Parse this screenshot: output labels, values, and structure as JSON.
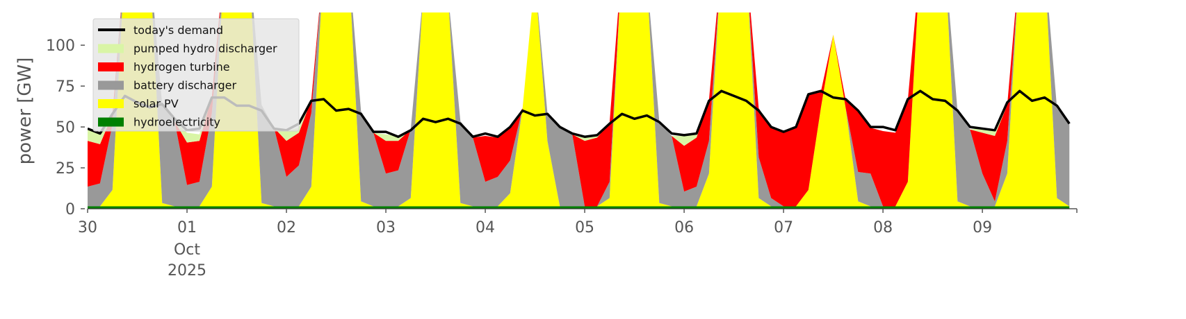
{
  "chart_data": {
    "type": "area",
    "title": "",
    "ylabel": "power [GW]",
    "xlabel": "",
    "ylim": [
      0,
      120
    ],
    "yticks": [
      "0",
      "25",
      "50",
      "75",
      "100"
    ],
    "ytick_values": [
      0,
      25,
      50,
      75,
      100
    ],
    "xlim_days": [
      0,
      9.95
    ],
    "x_start": "2025-09-30 00:00",
    "x_step_hours": 3,
    "xtick_labels": [
      "30",
      "01",
      "02",
      "03",
      "04",
      "05",
      "06",
      "07",
      "08",
      "09"
    ],
    "xtick_sublabel_month": "Oct",
    "xtick_sublabel_year": "2025",
    "grid": false,
    "legend_position": "top-left",
    "legend": [
      "today's demand",
      "pumped hydro discharger",
      "hydrogen turbine",
      "battery discharger",
      "solar PV",
      "hydroelectricity"
    ],
    "stack_series": [
      {
        "name": "hydroelectricity",
        "color": "#008000",
        "values": [
          1.5,
          1.5,
          1.5,
          1.5,
          1.5,
          1.5,
          1.5,
          1.5,
          1.5,
          1.5,
          1.5,
          1.5,
          1.5,
          1.5,
          1.5,
          1.5,
          1.5,
          1.5,
          1.5,
          1.5,
          1.5,
          1.5,
          1.5,
          1.5,
          1.5,
          1.5,
          1.5,
          1.5,
          1.5,
          1.5,
          1.5,
          1.5,
          1.5,
          1.5,
          1.5,
          1.5,
          1.5,
          1.5,
          1.5,
          1.5,
          1.5,
          1.5,
          1.5,
          1.5,
          1.5,
          1.5,
          1.5,
          1.5,
          1.5,
          1.5,
          1.5,
          1.5,
          1.5,
          1.5,
          1.5,
          1.5,
          1.5,
          1.5,
          1.5,
          1.5,
          1.5,
          1.5,
          1.5,
          1.5,
          1.5,
          1.5,
          1.5,
          1.5,
          1.5,
          1.5,
          1.5,
          1.5,
          1.5,
          1.5,
          1.5,
          1.5,
          1.5,
          1.5,
          1.5,
          1.5
        ]
      },
      {
        "name": "solar PV",
        "color": "#ffff00",
        "values": [
          0,
          0,
          10,
          150,
          180,
          150,
          2,
          0,
          0,
          0,
          12,
          150,
          180,
          150,
          2,
          0,
          0,
          0,
          12,
          150,
          180,
          150,
          3,
          0,
          0,
          0,
          5,
          130,
          180,
          130,
          2,
          0,
          0,
          0,
          8,
          60,
          140,
          40,
          0,
          0,
          0,
          0,
          5,
          150,
          180,
          140,
          2,
          0,
          0,
          0,
          20,
          150,
          180,
          150,
          5,
          0,
          0,
          0,
          10,
          60,
          105,
          60,
          3,
          0,
          0,
          0,
          15,
          150,
          180,
          150,
          3,
          0,
          0,
          0,
          20,
          150,
          180,
          150,
          5,
          0
        ]
      },
      {
        "name": "battery discharger",
        "color": "#999999",
        "values": [
          12,
          14,
          40,
          0,
          0,
          0,
          60,
          52,
          13,
          15,
          45,
          0,
          0,
          0,
          60,
          48,
          18,
          25,
          45,
          0,
          0,
          0,
          55,
          45,
          20,
          22,
          42,
          0,
          0,
          0,
          50,
          42,
          15,
          18,
          20,
          0,
          0,
          17,
          48,
          44,
          0,
          0,
          10,
          0,
          0,
          0,
          50,
          43,
          9,
          12,
          20,
          0,
          0,
          0,
          25,
          5,
          0,
          0,
          0,
          0,
          0,
          0,
          18,
          20,
          0,
          0,
          0,
          0,
          0,
          0,
          55,
          47,
          20,
          3,
          20,
          0,
          0,
          0,
          55,
          50
        ]
      },
      {
        "name": "hydrogen turbine",
        "color": "#ff0000",
        "values": [
          28,
          24,
          6,
          0,
          0,
          0,
          0,
          0,
          26,
          25,
          10,
          0,
          0,
          0,
          0,
          0,
          22,
          20,
          8,
          0,
          0,
          0,
          0,
          0,
          20,
          18,
          0,
          0,
          0,
          0,
          0,
          0,
          28,
          24,
          20,
          0,
          0,
          0,
          0,
          0,
          40,
          42,
          36,
          0,
          0,
          0,
          0,
          0,
          28,
          30,
          25,
          0,
          0,
          0,
          30,
          43,
          45,
          48,
          58,
          10,
          0,
          5,
          38,
          28,
          46,
          45,
          50,
          0,
          0,
          0,
          0,
          0,
          25,
          40,
          22,
          0,
          0,
          0,
          0,
          0
        ]
      },
      {
        "name": "pumped hydro discharger",
        "color": "#d9f5a6",
        "values": [
          7,
          6,
          0,
          0,
          0,
          0,
          0,
          0,
          6,
          4,
          0,
          0,
          0,
          0,
          0,
          0,
          6,
          3,
          0,
          0,
          0,
          0,
          0,
          0,
          4,
          3,
          0,
          0,
          0,
          0,
          0,
          0,
          0,
          0,
          0,
          0,
          0,
          0,
          0,
          0,
          3,
          2,
          0,
          0,
          0,
          0,
          0,
          0,
          6,
          3,
          0,
          0,
          0,
          0,
          0,
          0,
          0,
          0,
          0,
          0,
          0,
          0,
          0,
          0,
          0,
          0,
          0,
          0,
          0,
          0,
          0,
          0,
          3,
          3,
          0,
          0,
          0,
          0,
          0,
          0
        ]
      }
    ],
    "line_series": {
      "name": "today's demand",
      "color": "#000000",
      "values": [
        49,
        46,
        58,
        69,
        65,
        62,
        64,
        55,
        48,
        49,
        68,
        68,
        63,
        63,
        60,
        49,
        48,
        52,
        66,
        67,
        60,
        61,
        58,
        47,
        47,
        44,
        48,
        55,
        53,
        55,
        52,
        44,
        46,
        44,
        50,
        60,
        57,
        58,
        50,
        46,
        44,
        45,
        52,
        58,
        55,
        57,
        53,
        46,
        45,
        46,
        66,
        72,
        69,
        66,
        60,
        50,
        47,
        50,
        70,
        72,
        68,
        67,
        60,
        50,
        50,
        48,
        67,
        72,
        67,
        66,
        60,
        50,
        49,
        48,
        65,
        72,
        66,
        68,
        63,
        52
      ]
    }
  }
}
